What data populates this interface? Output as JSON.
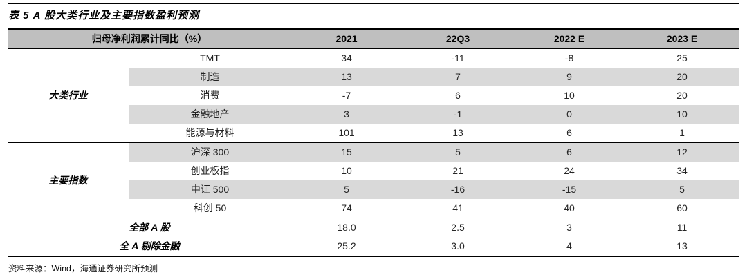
{
  "title": "表 5  A 股大类行业及主要指数盈利预测",
  "table": {
    "header": {
      "label": "归母净利润累计同比（%）",
      "columns": [
        "2021",
        "22Q3",
        "2022 E",
        "2023 E"
      ]
    },
    "sections": [
      {
        "group": "大类行业",
        "rows": [
          {
            "name": "TMT",
            "values": [
              "34",
              "-11",
              "-8",
              "25"
            ]
          },
          {
            "name": "制造",
            "values": [
              "13",
              "7",
              "9",
              "20"
            ]
          },
          {
            "name": "消费",
            "values": [
              "-7",
              "6",
              "10",
              "20"
            ]
          },
          {
            "name": "金融地产",
            "values": [
              "3",
              "-1",
              "0",
              "10"
            ]
          },
          {
            "name": "能源与材料",
            "values": [
              "101",
              "13",
              "6",
              "1"
            ]
          }
        ]
      },
      {
        "group": "主要指数",
        "rows": [
          {
            "name": "沪深 300",
            "values": [
              "15",
              "5",
              "6",
              "12"
            ]
          },
          {
            "name": "创业板指",
            "values": [
              "10",
              "21",
              "24",
              "34"
            ]
          },
          {
            "name": "中证 500",
            "values": [
              "5",
              "-16",
              "-15",
              "5"
            ]
          },
          {
            "name": "科创 50",
            "values": [
              "74",
              "41",
              "40",
              "60"
            ]
          }
        ]
      }
    ],
    "summary_rows": [
      {
        "name": "全部 A 股",
        "values": [
          "18.0",
          "2.5",
          "3",
          "11"
        ]
      },
      {
        "name": "全 A 剔除金融",
        "values": [
          "25.2",
          "3.0",
          "4",
          "13"
        ]
      }
    ]
  },
  "source_note": "资料来源：Wind，海通证券研究所预测",
  "colors": {
    "header_bg": "#bfbfbf",
    "stripe_bg": "#d9d9d9",
    "rule": "#000000"
  }
}
